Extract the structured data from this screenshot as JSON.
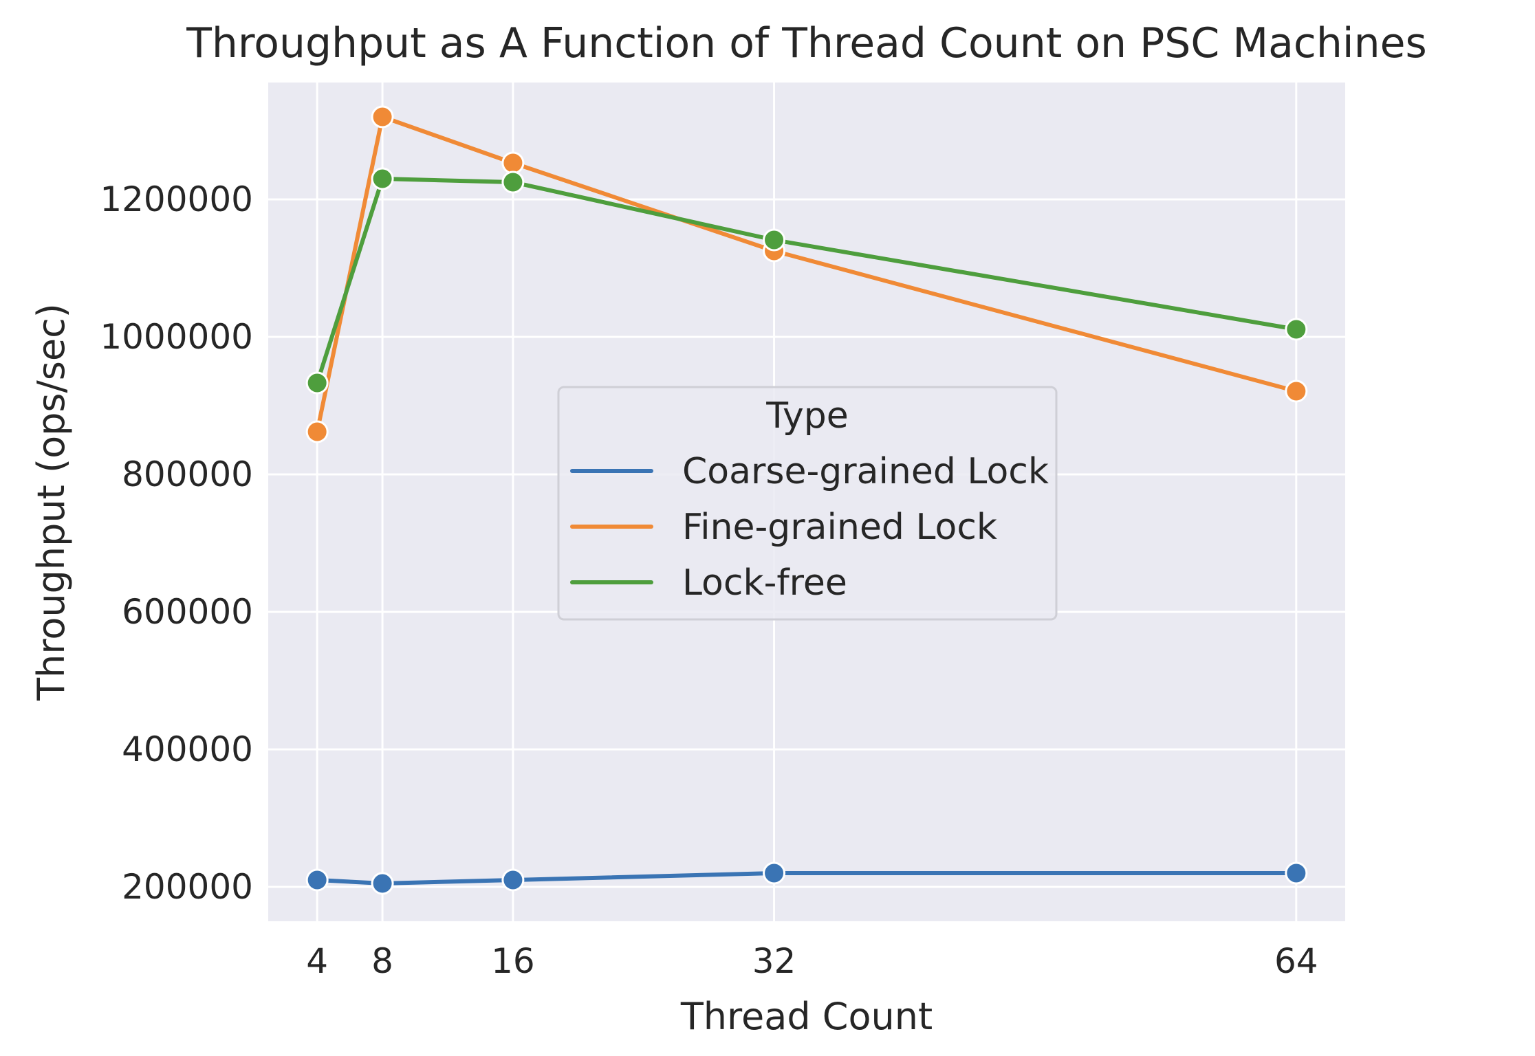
{
  "chart_data": {
    "type": "line",
    "title": "Throughput as A Function of Thread Count on PSC Machines",
    "xlabel": "Thread Count",
    "ylabel": "Throughput (ops/sec)",
    "x": [
      4,
      8,
      16,
      32,
      64
    ],
    "xticks": [
      "4",
      "8",
      "16",
      "32",
      "64"
    ],
    "yticks": [
      200000,
      400000,
      600000,
      800000,
      1000000,
      1200000
    ],
    "xlim": [
      1,
      67
    ],
    "ylim": [
      150000,
      1370000
    ],
    "grid": true,
    "legend": {
      "title": "Type",
      "placement": "center"
    },
    "series": [
      {
        "name": "Coarse-grained Lock",
        "color": "#3a74b4",
        "values": [
          210000,
          205000,
          210000,
          220000,
          220000
        ]
      },
      {
        "name": "Fine-grained Lock",
        "color": "#f08a36",
        "values": [
          862000,
          1320000,
          1253000,
          1125000,
          921000
        ]
      },
      {
        "name": "Lock-free",
        "color": "#4e9e3d",
        "values": [
          933000,
          1230000,
          1225000,
          1141000,
          1011000
        ]
      }
    ]
  }
}
